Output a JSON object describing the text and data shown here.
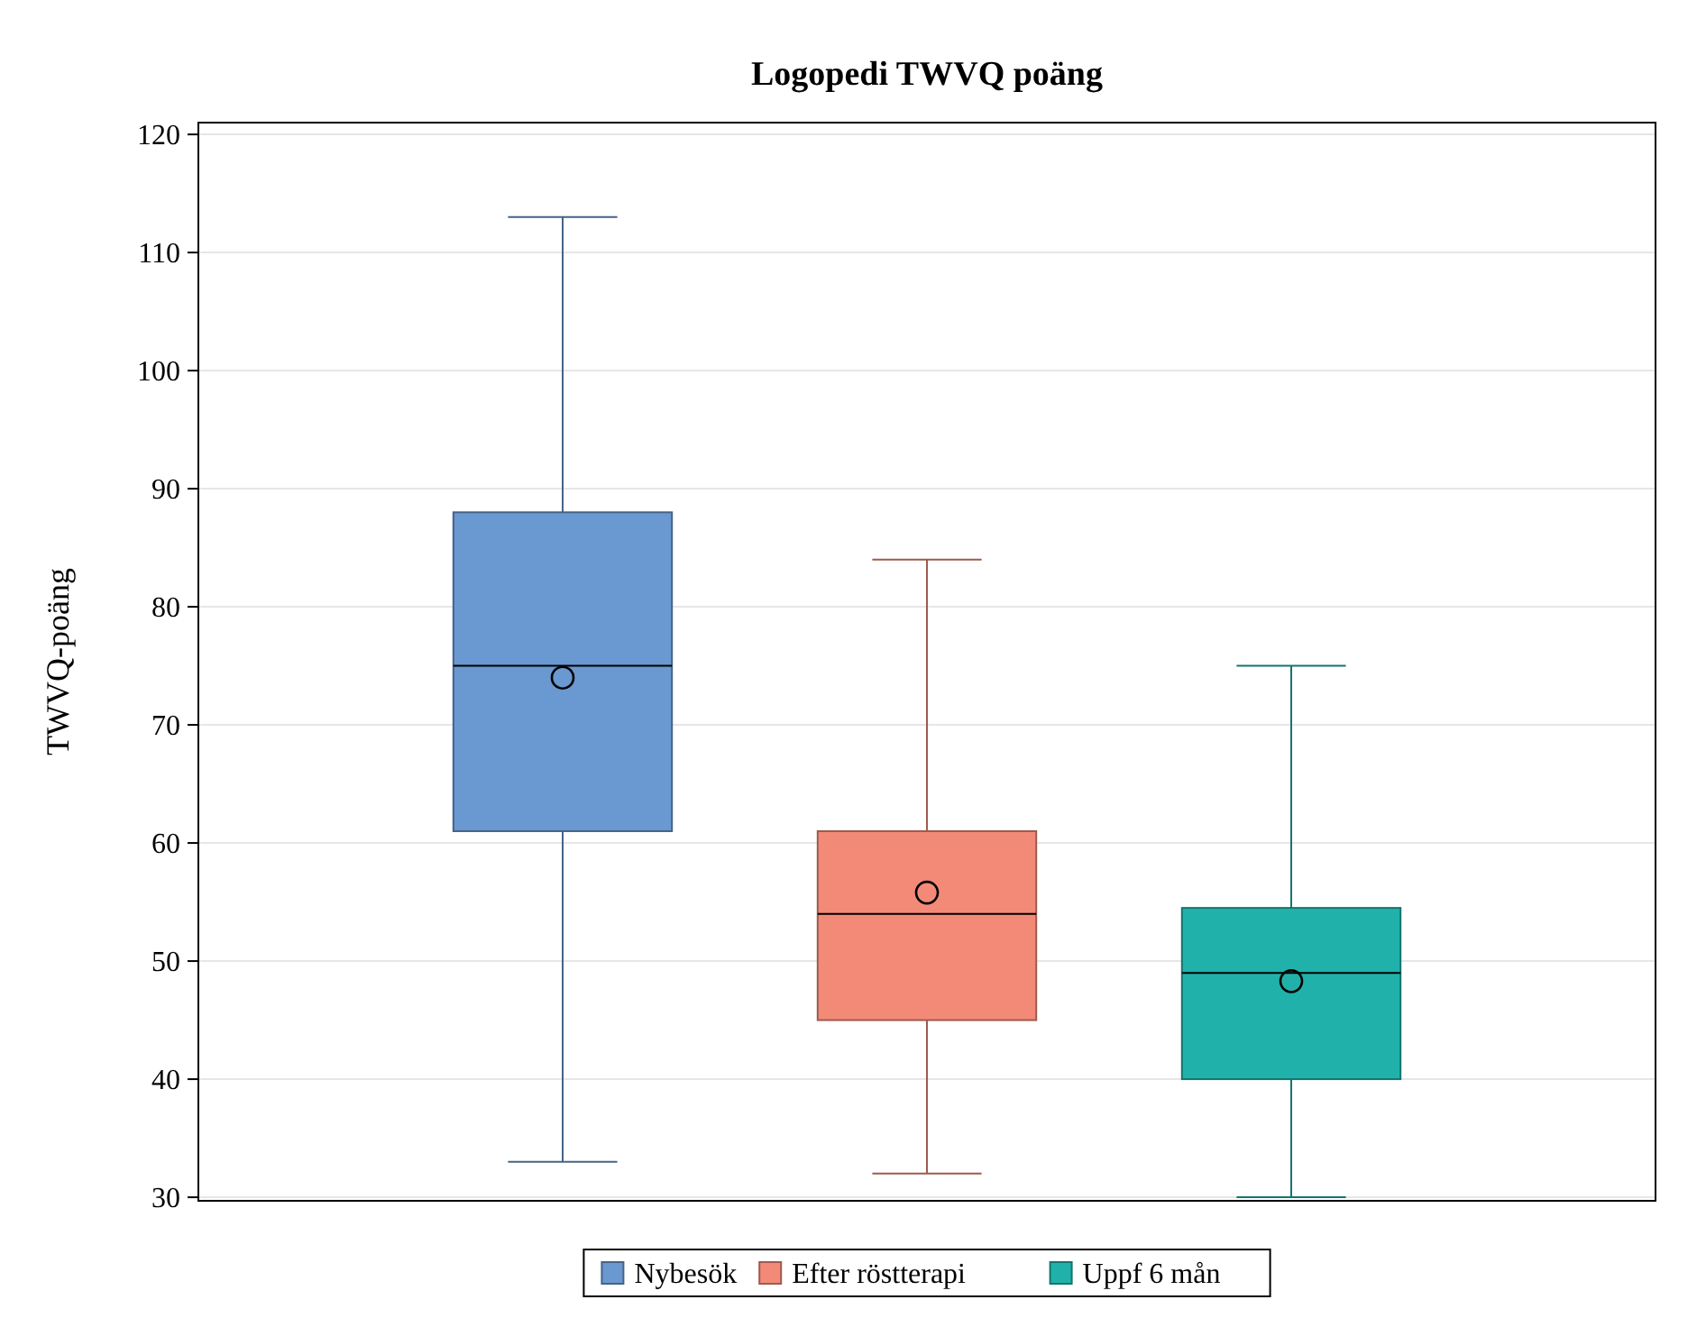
{
  "chart_data": {
    "type": "box",
    "title": "Logopedi TWVQ poäng",
    "ylabel": "TWVQ-poäng",
    "categories": [
      null
    ],
    "series": [
      {
        "name": "Nybesök",
        "color": "#6a98d0",
        "boxes": [
          {
            "low": 33,
            "q1": 61,
            "median": 75,
            "q3": 88,
            "high": 113,
            "mean": 74
          }
        ]
      },
      {
        "name": "Efter röstterapi",
        "color": "#f38a78",
        "boxes": [
          {
            "low": 32,
            "q1": 45,
            "median": 54,
            "q3": 61,
            "high": 84,
            "mean": 55.8
          }
        ]
      },
      {
        "name": "Uppf 6 mån",
        "color": "#20b2aa",
        "boxes": [
          {
            "low": 30,
            "q1": 40,
            "median": 49,
            "q3": 54.5,
            "high": 75,
            "mean": 48.3
          }
        ]
      }
    ],
    "ylim": [
      29.7,
      121
    ],
    "yticks": [
      30,
      40,
      50,
      60,
      70,
      80,
      90,
      100,
      110,
      120
    ],
    "grid": "y",
    "legend": "bottom",
    "marker": "circle"
  }
}
